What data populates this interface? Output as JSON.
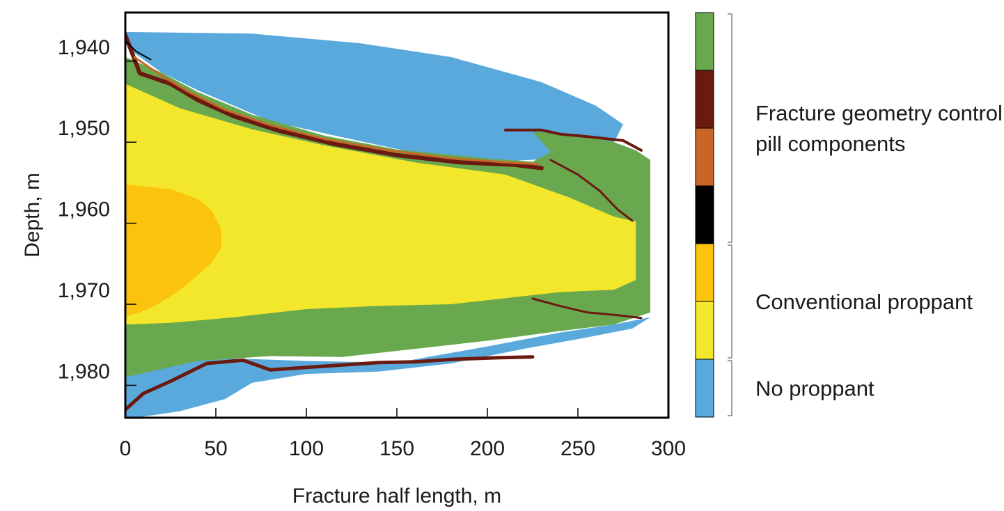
{
  "chart_data": {
    "type": "heatmap",
    "xlabel": "Fracture half length, m",
    "ylabel": "Depth, m",
    "xlim": [
      0,
      300
    ],
    "ylim": [
      1984,
      1934
    ],
    "x_ticks": [
      0,
      50,
      100,
      150,
      200,
      250,
      300
    ],
    "y_ticks": [
      1940,
      1950,
      1960,
      1970,
      1980
    ],
    "y_tick_labels": [
      "1,940",
      "1,950",
      "1,960",
      "1,970",
      "1,980"
    ],
    "legend": {
      "placement": "right",
      "swatches": [
        {
          "key": "fgc_green",
          "color": "#6aa84f"
        },
        {
          "key": "fgc_darkred",
          "color": "#6b1a10"
        },
        {
          "key": "fgc_orange",
          "color": "#c8662a"
        },
        {
          "key": "fgc_black",
          "color": "#000000"
        },
        {
          "key": "prop_orange",
          "color": "#fbc20e"
        },
        {
          "key": "prop_yellow",
          "color": "#f2e72a"
        },
        {
          "key": "no_prop_blue",
          "color": "#5aa9dc"
        }
      ],
      "groups": [
        {
          "lines": [
            "Fracture geometry control",
            "pill components"
          ],
          "from": 0,
          "to": 3
        },
        {
          "lines": [
            "Conventional proppant"
          ],
          "from": 4,
          "to": 5
        },
        {
          "lines": [
            "No proppant"
          ],
          "from": 6,
          "to": 6
        }
      ]
    },
    "regions": [
      {
        "name": "blue-upper",
        "color": "#5aa9dc",
        "points": [
          [
            0,
            1936.4
          ],
          [
            70,
            1936.6
          ],
          [
            130,
            1937.8
          ],
          [
            180,
            1939.5
          ],
          [
            230,
            1942.6
          ],
          [
            260,
            1945.5
          ],
          [
            275,
            1947.8
          ],
          [
            270,
            1950
          ],
          [
            240,
            1952
          ],
          [
            205,
            1952.4
          ],
          [
            160,
            1951.3
          ],
          [
            120,
            1949.4
          ],
          [
            80,
            1947.4
          ],
          [
            40,
            1943.6
          ],
          [
            20,
            1941.4
          ],
          [
            5,
            1939
          ],
          [
            0,
            1937.5
          ]
        ]
      },
      {
        "name": "blue-lower",
        "color": "#5aa9dc",
        "points": [
          [
            0,
            1977.2
          ],
          [
            50,
            1976.6
          ],
          [
            100,
            1977
          ],
          [
            150,
            1977.2
          ],
          [
            200,
            1975.2
          ],
          [
            240,
            1973.5
          ],
          [
            270,
            1972.5
          ],
          [
            290,
            1971.6
          ],
          [
            280,
            1973
          ],
          [
            250,
            1974.3
          ],
          [
            220,
            1975.5
          ],
          [
            180,
            1977.3
          ],
          [
            140,
            1978.3
          ],
          [
            100,
            1978.6
          ],
          [
            70,
            1979.7
          ],
          [
            55,
            1981.7
          ],
          [
            30,
            1983.2
          ],
          [
            0,
            1984.2
          ]
        ]
      },
      {
        "name": "green-frame",
        "color": "#6aa84f",
        "points": [
          [
            0,
            1939.5
          ],
          [
            20,
            1941.4
          ],
          [
            40,
            1943.8
          ],
          [
            70,
            1946.6
          ],
          [
            110,
            1949.2
          ],
          [
            150,
            1950.9
          ],
          [
            200,
            1952
          ],
          [
            225,
            1952.4
          ],
          [
            235,
            1951.2
          ],
          [
            225,
            1948.7
          ],
          [
            250,
            1949
          ],
          [
            270,
            1950
          ],
          [
            282,
            1951
          ],
          [
            290,
            1952.2
          ],
          [
            290,
            1957
          ],
          [
            290,
            1965
          ],
          [
            290,
            1971
          ],
          [
            270,
            1972.5
          ],
          [
            240,
            1973.3
          ],
          [
            200,
            1974.5
          ],
          [
            160,
            1975.5
          ],
          [
            120,
            1976.5
          ],
          [
            80,
            1976.4
          ],
          [
            40,
            1977
          ],
          [
            0,
            1979
          ]
        ]
      },
      {
        "name": "yellow-core",
        "color": "#f2e72a",
        "points": [
          [
            0,
            1942.8
          ],
          [
            30,
            1945.8
          ],
          [
            70,
            1948.4
          ],
          [
            110,
            1950.4
          ],
          [
            160,
            1952.5
          ],
          [
            210,
            1954
          ],
          [
            245,
            1956.8
          ],
          [
            270,
            1959.2
          ],
          [
            282,
            1959.8
          ],
          [
            282,
            1964
          ],
          [
            282,
            1967
          ],
          [
            270,
            1968.2
          ],
          [
            240,
            1968.5
          ],
          [
            220,
            1969
          ],
          [
            180,
            1970
          ],
          [
            140,
            1970.2
          ],
          [
            100,
            1970.6
          ],
          [
            60,
            1971.6
          ],
          [
            25,
            1972.3
          ],
          [
            0,
            1972.5
          ]
        ]
      },
      {
        "name": "orange-core",
        "color": "#fbc20e",
        "points": [
          [
            0,
            1955.2
          ],
          [
            25,
            1955.8
          ],
          [
            40,
            1957
          ],
          [
            48,
            1958.5
          ],
          [
            53,
            1960.8
          ],
          [
            53,
            1963
          ],
          [
            48,
            1964.8
          ],
          [
            38,
            1966.8
          ],
          [
            28,
            1968.6
          ],
          [
            18,
            1970
          ],
          [
            8,
            1971
          ],
          [
            0,
            1971.5
          ]
        ]
      }
    ],
    "bands": [
      {
        "name": "upper-band",
        "color": "#6b1a10",
        "width": 6,
        "points": [
          [
            0,
            1936.8
          ],
          [
            8,
            1941.5
          ],
          [
            25,
            1942.8
          ],
          [
            40,
            1944.8
          ],
          [
            60,
            1946.8
          ],
          [
            85,
            1948.6
          ],
          [
            115,
            1950.2
          ],
          [
            150,
            1951.6
          ],
          [
            185,
            1952.5
          ],
          [
            215,
            1952.8
          ],
          [
            230,
            1953.2
          ]
        ]
      },
      {
        "name": "upper-band-orange",
        "color": "#c8662a",
        "width": 3,
        "points": [
          [
            5,
            1939.5
          ],
          [
            20,
            1941.8
          ],
          [
            35,
            1943.8
          ],
          [
            55,
            1946
          ],
          [
            80,
            1947.9
          ],
          [
            110,
            1949.6
          ],
          [
            145,
            1951
          ],
          [
            180,
            1952
          ],
          [
            210,
            1952.5
          ],
          [
            228,
            1952.7
          ]
        ]
      },
      {
        "name": "upper-band-black",
        "color": "#000000",
        "width": 2,
        "points": [
          [
            0,
            1937.5
          ],
          [
            6,
            1938.8
          ],
          [
            14,
            1939.8
          ]
        ]
      },
      {
        "name": "step-band",
        "color": "#6b1a10",
        "width": 4,
        "points": [
          [
            210,
            1948.5
          ],
          [
            230,
            1948.5
          ],
          [
            240,
            1949
          ],
          [
            255,
            1949.3
          ],
          [
            275,
            1949.8
          ],
          [
            285,
            1951
          ]
        ]
      },
      {
        "name": "inner-band",
        "color": "#6b1a10",
        "width": 3,
        "points": [
          [
            235,
            1952.2
          ],
          [
            250,
            1954
          ],
          [
            262,
            1956
          ],
          [
            272,
            1958.3
          ],
          [
            280,
            1959.7
          ]
        ]
      },
      {
        "name": "lower-band",
        "color": "#6b1a10",
        "width": 5,
        "points": [
          [
            0,
            1983
          ],
          [
            10,
            1981
          ],
          [
            25,
            1979.5
          ],
          [
            45,
            1977.3
          ],
          [
            65,
            1976.9
          ],
          [
            80,
            1978.1
          ],
          [
            100,
            1977.8
          ],
          [
            120,
            1977.5
          ],
          [
            140,
            1977.2
          ],
          [
            160,
            1977.1
          ],
          [
            180,
            1976.8
          ],
          [
            205,
            1976.6
          ],
          [
            225,
            1976.5
          ]
        ]
      },
      {
        "name": "lower-band-right",
        "color": "#6b1a10",
        "width": 3,
        "points": [
          [
            225,
            1969.3
          ],
          [
            240,
            1970.2
          ],
          [
            255,
            1971
          ],
          [
            270,
            1971.3
          ],
          [
            285,
            1971.7
          ]
        ]
      }
    ]
  }
}
